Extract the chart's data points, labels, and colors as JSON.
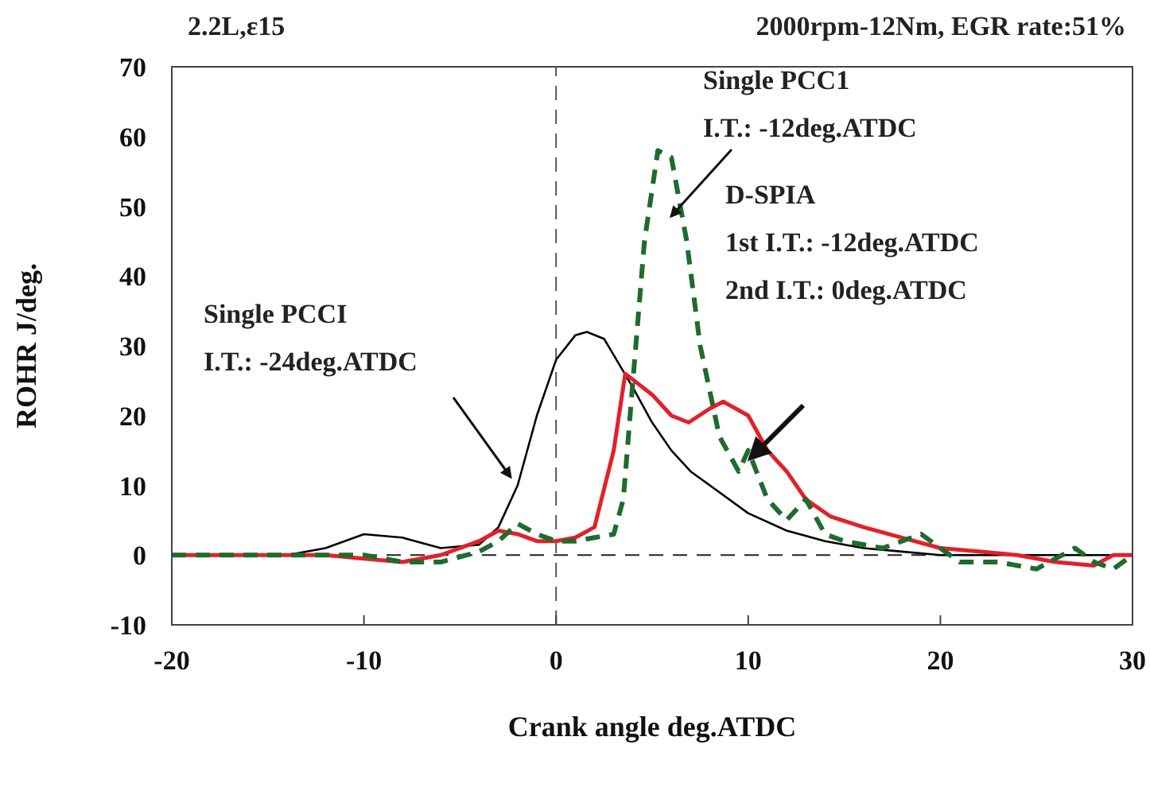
{
  "chart_data": {
    "type": "line",
    "xlabel": "Crank angle deg.ATDC",
    "ylabel": "ROHR J/deg.",
    "xlim": [
      -20,
      30
    ],
    "ylim": [
      -10,
      70
    ],
    "xticks": [
      -20,
      -10,
      0,
      10,
      20,
      30
    ],
    "yticks": [
      -10,
      0,
      10,
      20,
      30,
      40,
      50,
      60,
      70
    ],
    "grid": false,
    "legend": false,
    "marker": "none",
    "series": [
      {
        "color": "#000000",
        "line_style": "solid",
        "x": [
          -20,
          -17,
          -14,
          -12,
          -10,
          -8,
          -6,
          -4,
          -3,
          -2,
          -1,
          0,
          1,
          1.6,
          2.5,
          4,
          5,
          6,
          7,
          8,
          10,
          12,
          14,
          16,
          18,
          20,
          23,
          26,
          30
        ],
        "values": [
          0,
          0,
          0,
          1,
          3,
          2.5,
          1,
          1.5,
          4,
          10,
          20,
          28,
          31.5,
          32,
          31,
          24,
          19,
          15,
          12,
          10,
          6,
          3.5,
          2,
          1,
          0.5,
          0,
          0,
          0,
          0
        ]
      },
      {
        "color": "#e3202a",
        "line_style": "solid",
        "x": [
          -20,
          -17,
          -14,
          -12,
          -10,
          -8,
          -6,
          -4,
          -3,
          -2,
          -1,
          0,
          1,
          2,
          3,
          3.6,
          5,
          6,
          6.9,
          8,
          8.7,
          10,
          11,
          12,
          13,
          14.3,
          16,
          18,
          20,
          22,
          24,
          26,
          28,
          29,
          30
        ],
        "values": [
          0,
          0,
          0,
          0,
          -0.5,
          -1,
          0,
          2,
          3.5,
          3,
          2,
          2,
          2.5,
          4,
          15,
          26,
          23,
          20,
          19,
          21,
          22,
          20,
          15,
          12,
          8,
          5.5,
          4,
          2.5,
          1,
          0.5,
          0,
          -1,
          -1.5,
          0,
          0
        ]
      },
      {
        "color": "#1e6b2e",
        "line_style": "dashed",
        "x": [
          -20,
          -17,
          -14,
          -12,
          -10,
          -8,
          -6,
          -4,
          -3,
          -2,
          -1,
          0,
          1,
          2,
          3,
          3.5,
          4,
          4.6,
          5.3,
          6,
          6.8,
          7.5,
          8.5,
          9.5,
          10,
          11,
          12,
          13,
          14,
          15,
          17,
          19,
          21,
          23,
          25,
          27,
          28,
          29,
          30
        ],
        "values": [
          0,
          0,
          0,
          0,
          0,
          -1,
          -1,
          0.5,
          2,
          4.5,
          3,
          2,
          2,
          2.5,
          3,
          8,
          25,
          45,
          58,
          57,
          45,
          30,
          17,
          12,
          15,
          8,
          5,
          8,
          3,
          2,
          1,
          3,
          -1,
          -1,
          -2,
          1,
          -1,
          -2,
          0
        ]
      }
    ],
    "ref_lines": [
      {
        "axis": "x",
        "value": 0,
        "line_style": "dashed",
        "color": "#555555"
      },
      {
        "axis": "y",
        "value": 0,
        "line_style": "dashed",
        "color": "#222222"
      }
    ],
    "annotations": [
      "2.2L,ε15",
      "2000rpm-12Nm, EGR rate:51%",
      "Single PCC1\nI.T.: -12deg.ATDC",
      "D-SPIA\n1st I.T.: -12deg.ATDC\n2nd I.T.: 0deg.ATDC",
      "Single PCCI\nI.T.: -24deg.ATDC"
    ]
  }
}
